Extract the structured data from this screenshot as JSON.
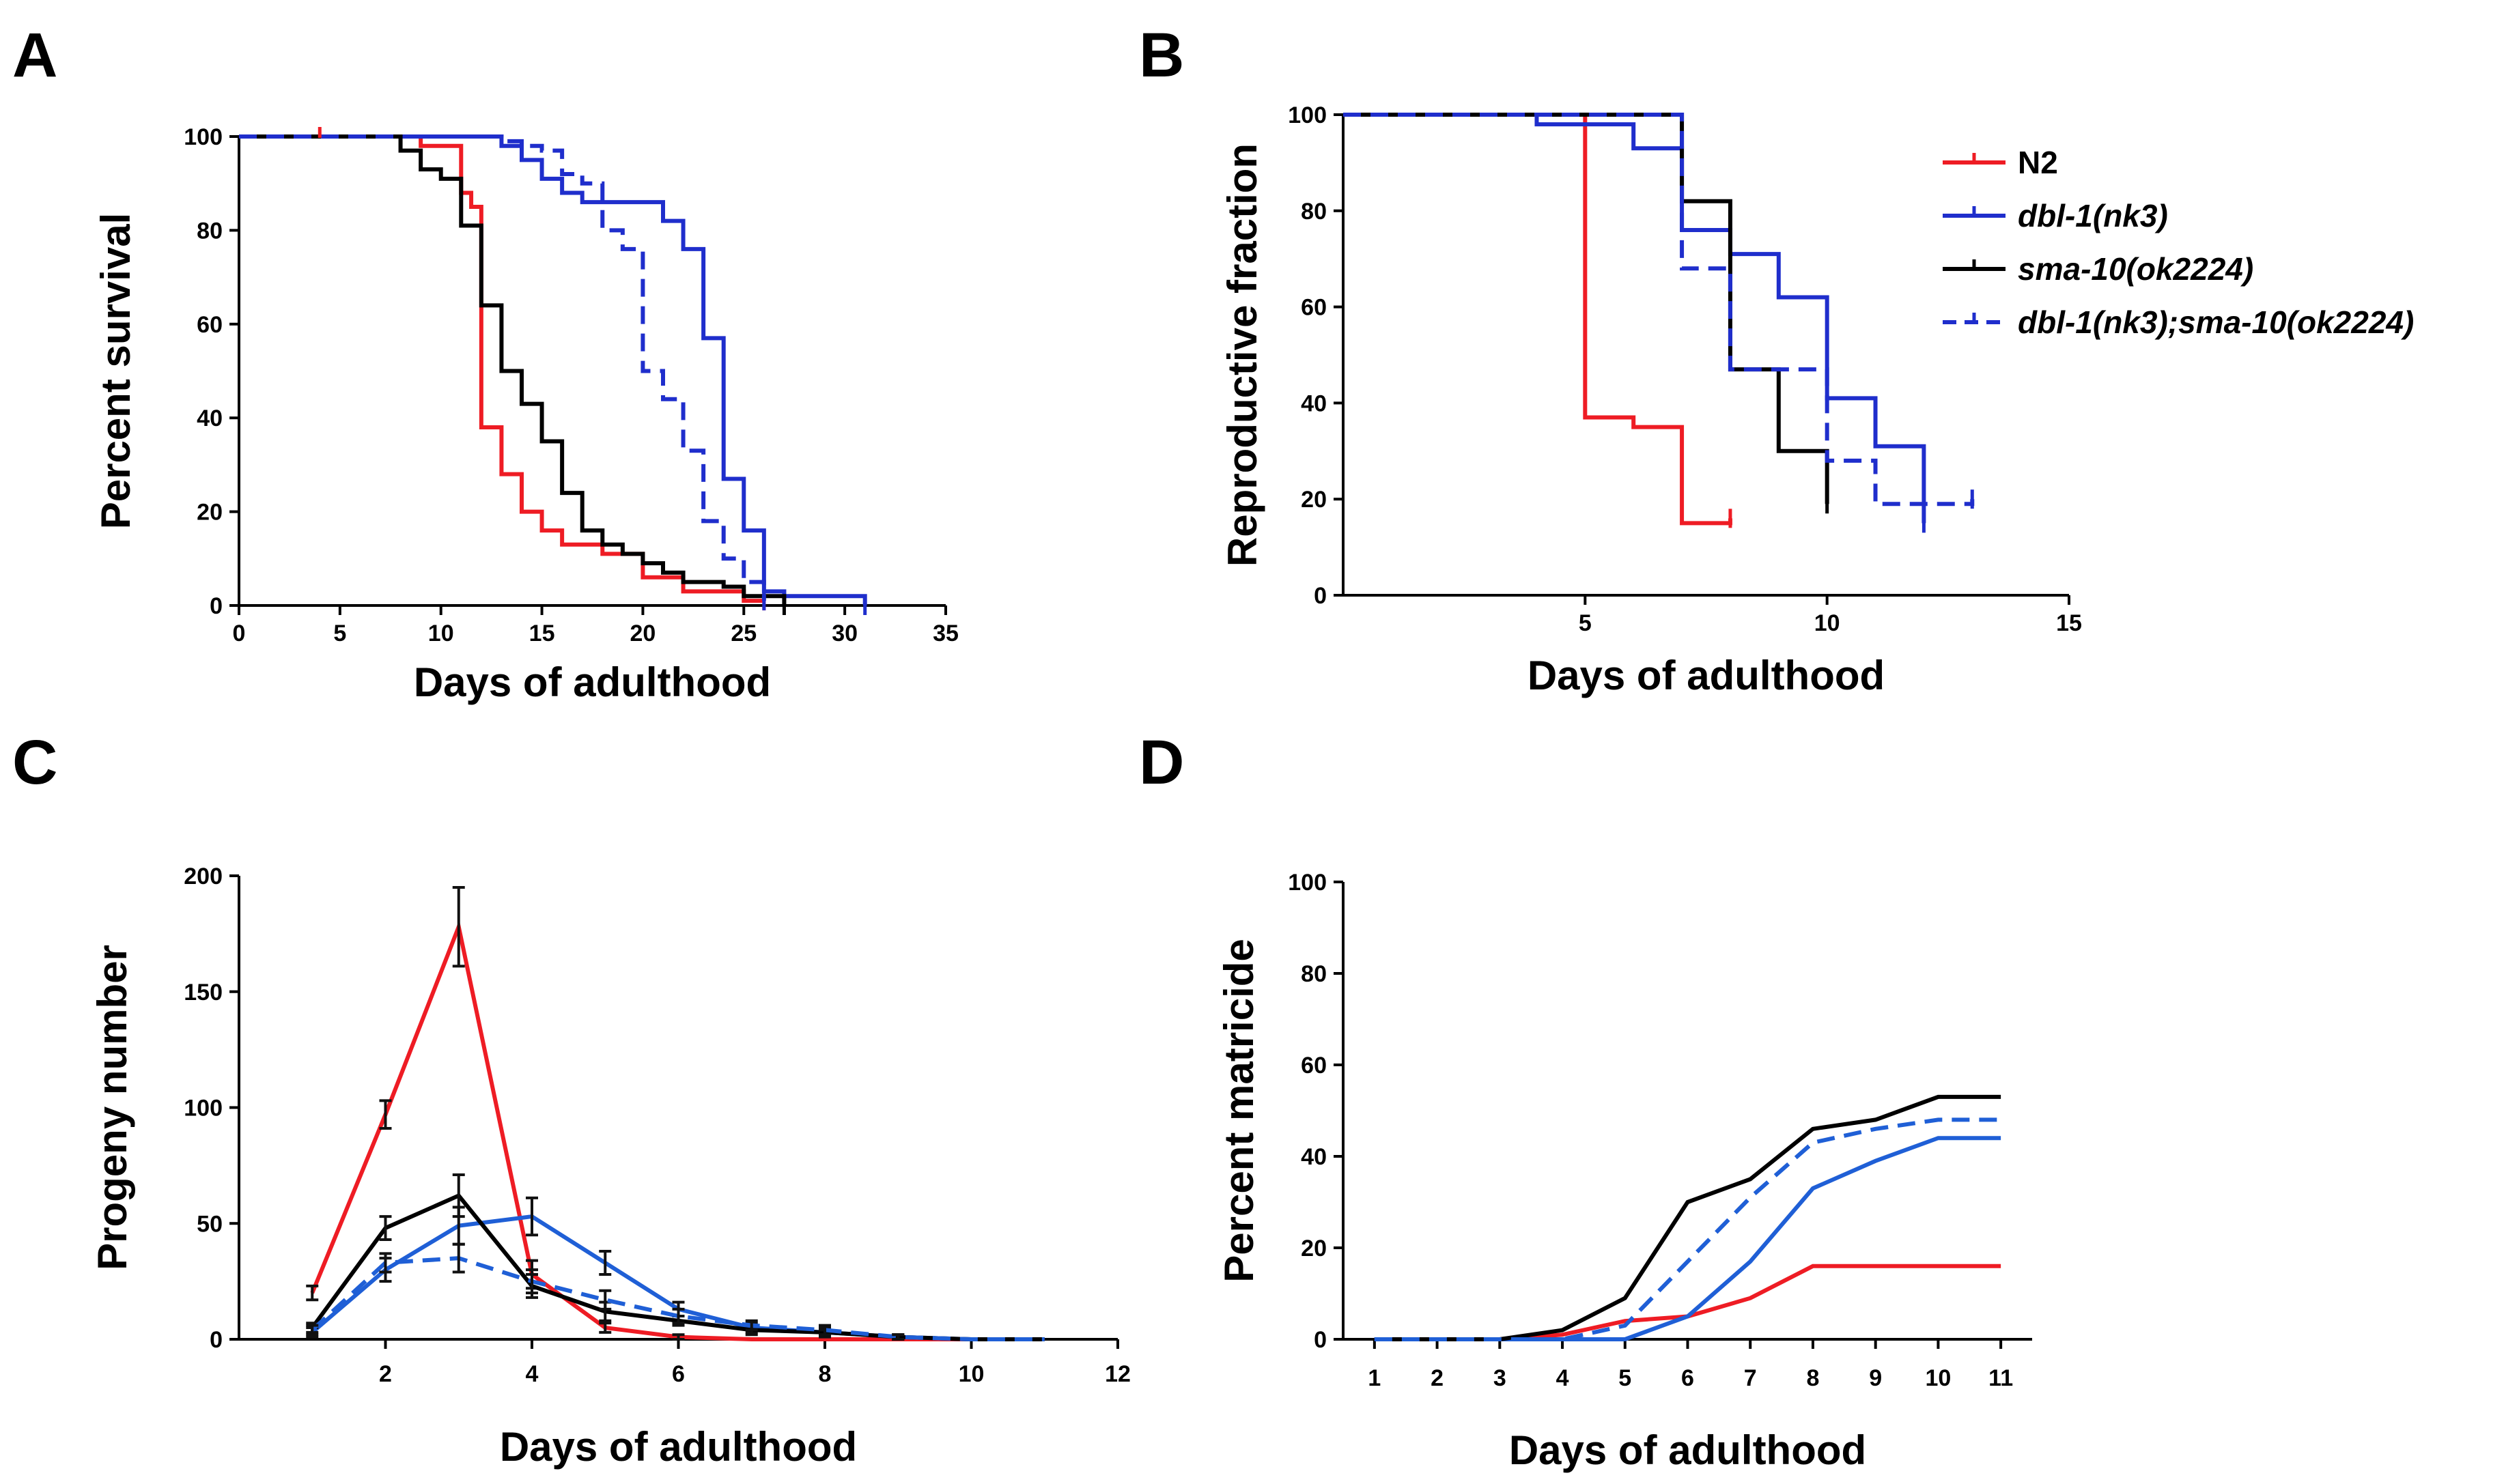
{
  "colors": {
    "N2": "#ee1c24",
    "dbl1": "#1f2ecc",
    "sma10": "#000000",
    "double": "#1f2ecc",
    "dbl1_line": "#1f5fd6"
  },
  "legend": {
    "entries": [
      {
        "label": "N2",
        "color": "#ee1c24",
        "dash": false,
        "italic": false
      },
      {
        "label": "dbl-1(nk3)",
        "color": "#1f2ecc",
        "dash": false,
        "italic": true
      },
      {
        "label": "sma-10(ok2224)",
        "color": "#000000",
        "dash": false,
        "italic": true
      },
      {
        "label": "dbl-1(nk3);sma-10(ok2224)",
        "color": "#1f2ecc",
        "dash": true,
        "italic": true
      }
    ]
  },
  "chart_data": [
    {
      "panel": "A",
      "type": "line",
      "step": true,
      "title": "",
      "xlabel": "Days of adulthood",
      "ylabel": "Percent survival",
      "xlim": [
        0,
        35
      ],
      "ylim": [
        0,
        100
      ],
      "xticks": [
        0,
        5,
        10,
        15,
        20,
        25,
        30,
        35
      ],
      "yticks": [
        0,
        20,
        40,
        60,
        80,
        100
      ],
      "series": [
        {
          "name": "N2",
          "color": "#ee1c24",
          "dash": false,
          "x": [
            0,
            9,
            11,
            11.5,
            12,
            13,
            14,
            15,
            16,
            18,
            20,
            22,
            25,
            26
          ],
          "y": [
            100,
            98,
            88,
            85,
            38,
            28,
            20,
            16,
            13,
            11,
            6,
            3,
            1,
            1
          ]
        },
        {
          "name": "dbl-1(nk3)",
          "color": "#1f2ecc",
          "dash": false,
          "x": [
            0,
            13,
            14,
            15,
            16,
            17,
            18,
            21,
            22,
            23,
            24,
            25,
            26,
            27,
            31
          ],
          "y": [
            100,
            98,
            95,
            91,
            88,
            86,
            86,
            82,
            76,
            57,
            27,
            16,
            3,
            2,
            0
          ]
        },
        {
          "name": "sma-10(ok2224)",
          "color": "#000000",
          "dash": false,
          "x": [
            0,
            8,
            9,
            10,
            11,
            12,
            13,
            14,
            15,
            16,
            17,
            18,
            19,
            20,
            21,
            22,
            24,
            25,
            27
          ],
          "y": [
            100,
            97,
            93,
            91,
            81,
            64,
            50,
            43,
            35,
            24,
            16,
            13,
            11,
            9,
            7,
            5,
            4,
            2,
            0
          ]
        },
        {
          "name": "dbl-1(nk3);sma-10(ok2224)",
          "color": "#1f2ecc",
          "dash": true,
          "x": [
            0,
            13,
            14,
            15,
            16,
            17,
            18,
            19,
            20,
            21,
            22,
            23,
            24,
            25,
            26
          ],
          "y": [
            100,
            99,
            98,
            97,
            92,
            90,
            80,
            76,
            50,
            44,
            33,
            18,
            10,
            5,
            1
          ]
        }
      ],
      "censor_marks": {
        "N2": [
          [
            4,
            100
          ]
        ]
      }
    },
    {
      "panel": "B",
      "type": "line",
      "step": true,
      "title": "",
      "xlabel": "Days of adulthood",
      "ylabel": "Reproductive fraction",
      "xlim": [
        0,
        15
      ],
      "ylim": [
        0,
        100
      ],
      "xticks": [
        5,
        10,
        15
      ],
      "yticks": [
        0,
        20,
        40,
        60,
        80,
        100
      ],
      "series": [
        {
          "name": "N2",
          "color": "#ee1c24",
          "dash": false,
          "x": [
            0,
            5,
            6,
            7,
            8
          ],
          "y": [
            100,
            37,
            35,
            15,
            16
          ]
        },
        {
          "name": "dbl-1(nk3)",
          "color": "#1f2ecc",
          "dash": false,
          "x": [
            0,
            4,
            6,
            7,
            8,
            9,
            10,
            11,
            12
          ],
          "y": [
            100,
            98,
            93,
            76,
            71,
            62,
            41,
            31,
            15
          ]
        },
        {
          "name": "sma-10(ok2224)",
          "color": "#000000",
          "dash": false,
          "x": [
            0,
            7,
            8,
            9,
            10
          ],
          "y": [
            100,
            82,
            47,
            30,
            19
          ]
        },
        {
          "name": "dbl-1(nk3);sma-10(ok2224)",
          "color": "#1f2ecc",
          "dash": true,
          "x": [
            0,
            7,
            8,
            10,
            11,
            13
          ],
          "y": [
            100,
            68,
            47,
            28,
            19,
            20
          ]
        }
      ]
    },
    {
      "panel": "C",
      "type": "line",
      "step": false,
      "title": "",
      "xlabel": "Days of adulthood",
      "ylabel": "Progeny number",
      "xlim": [
        0,
        12
      ],
      "ylim": [
        0,
        200
      ],
      "xticks": [
        2,
        4,
        6,
        8,
        10,
        12
      ],
      "yticks": [
        0,
        50,
        100,
        150,
        200
      ],
      "series": [
        {
          "name": "N2",
          "color": "#ee1c24",
          "dash": false,
          "x": [
            1,
            2,
            3,
            4,
            5,
            6,
            7,
            8,
            9,
            10,
            11
          ],
          "y": [
            20,
            97,
            178,
            28,
            5,
            1,
            0,
            0,
            0,
            0,
            0
          ],
          "err": [
            3,
            6,
            17,
            6,
            2,
            1,
            0,
            0,
            0,
            0,
            0
          ]
        },
        {
          "name": "dbl-1(nk3)",
          "color": "#1f5fd6",
          "dash": false,
          "x": [
            1,
            2,
            3,
            4,
            5,
            6,
            7,
            8,
            9,
            10,
            11
          ],
          "y": [
            3,
            30,
            49,
            53,
            33,
            13,
            5,
            3,
            1,
            0,
            0
          ],
          "err": [
            2,
            5,
            8,
            8,
            5,
            3,
            2,
            2,
            1,
            0,
            0
          ]
        },
        {
          "name": "sma-10(ok2224)",
          "color": "#000000",
          "dash": false,
          "x": [
            1,
            2,
            3,
            4,
            5,
            6,
            7,
            8,
            9,
            10,
            11
          ],
          "y": [
            5,
            48,
            62,
            23,
            12,
            8,
            4,
            3,
            1,
            0,
            0
          ],
          "err": [
            2,
            5,
            9,
            5,
            4,
            2,
            2,
            1,
            1,
            0,
            0
          ]
        },
        {
          "name": "dbl-1(nk3);sma-10(ok2224)",
          "color": "#1f5fd6",
          "dash": true,
          "x": [
            1,
            2,
            3,
            4,
            5,
            6,
            7,
            8,
            9,
            10,
            11
          ],
          "y": [
            4,
            33,
            35,
            25,
            17,
            10,
            6,
            4,
            1,
            0,
            0
          ],
          "err": [
            2,
            4,
            6,
            5,
            4,
            3,
            2,
            2,
            1,
            0,
            0
          ]
        }
      ]
    },
    {
      "panel": "D",
      "type": "line",
      "step": false,
      "title": "",
      "xlabel": "Days of adulthood",
      "ylabel": "Percent matricide",
      "xlim": [
        0.5,
        11.5
      ],
      "ylim": [
        0,
        100
      ],
      "xticks": [
        1,
        2,
        3,
        4,
        5,
        6,
        7,
        8,
        9,
        10,
        11
      ],
      "yticks": [
        0,
        20,
        40,
        60,
        80,
        100
      ],
      "series": [
        {
          "name": "N2",
          "color": "#ee1c24",
          "dash": false,
          "x": [
            1,
            2,
            3,
            4,
            5,
            6,
            7,
            8,
            9,
            10,
            11
          ],
          "y": [
            0,
            0,
            0,
            1,
            4,
            5,
            9,
            16,
            16,
            16,
            16
          ]
        },
        {
          "name": "dbl-1(nk3)",
          "color": "#1f5fd6",
          "dash": false,
          "x": [
            1,
            2,
            3,
            4,
            5,
            6,
            7,
            8,
            9,
            10,
            11
          ],
          "y": [
            0,
            0,
            0,
            0,
            0,
            5,
            17,
            33,
            39,
            44,
            44
          ]
        },
        {
          "name": "sma-10(ok2224)",
          "color": "#000000",
          "dash": false,
          "x": [
            1,
            2,
            3,
            4,
            5,
            6,
            7,
            8,
            9,
            10,
            11
          ],
          "y": [
            0,
            0,
            0,
            2,
            9,
            30,
            35,
            46,
            48,
            53,
            53
          ]
        },
        {
          "name": "dbl-1(nk3);sma-10(ok2224)",
          "color": "#1f5fd6",
          "dash": true,
          "x": [
            1,
            2,
            3,
            4,
            5,
            6,
            7,
            8,
            9,
            10,
            11
          ],
          "y": [
            0,
            0,
            0,
            0,
            3,
            17,
            31,
            43,
            46,
            48,
            48
          ]
        }
      ]
    }
  ]
}
